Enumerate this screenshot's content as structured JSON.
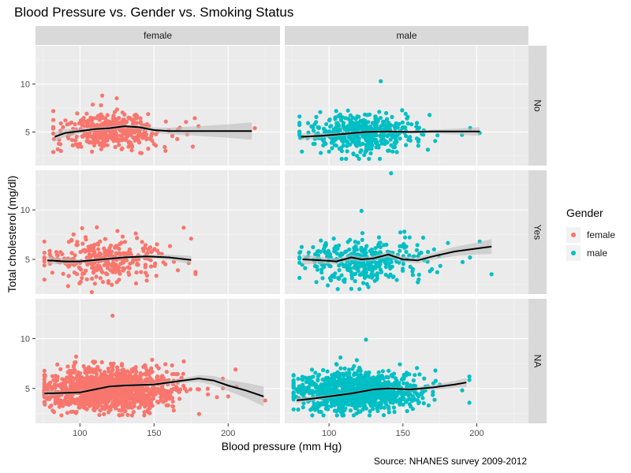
{
  "chart_data": {
    "type": "scatter",
    "title": "Blood Pressure vs. Gender vs. Smoking Status",
    "xlabel": "Blood pressure (mm Hg)",
    "ylabel": "Total cholesterol (mg/dl)",
    "caption": "Source: NHANES survey 2009-2012",
    "xlim": [
      70,
      235
    ],
    "ylim": [
      1.5,
      14
    ],
    "x_ticks": [
      100,
      150,
      200
    ],
    "y_ticks": [
      5,
      10
    ],
    "grid": true,
    "legend_position": "right",
    "legend": {
      "title": "Gender",
      "items": [
        {
          "label": "female",
          "color": "#F8766D"
        },
        {
          "label": "male",
          "color": "#00BFC4"
        }
      ]
    },
    "col_facets": [
      "female",
      "male"
    ],
    "row_facets": [
      "No",
      "Yes",
      "NA"
    ],
    "smooth_color": "#000000",
    "band_color": "#bdbdbd",
    "panels": [
      {
        "row": "No",
        "col": "female",
        "color": "#F8766D",
        "n": 420,
        "x_center": 120,
        "x_spread": 16,
        "x_min": 82,
        "x_max": 218,
        "y_center": 5.1,
        "y_spread": 0.9,
        "y_min": 2.6,
        "y_max": 8.9,
        "outliers": [
          {
            "x": 115,
            "y": 8.8
          },
          {
            "x": 218,
            "y": 5.4
          },
          {
            "x": 180,
            "y": 5.6
          },
          {
            "x": 85,
            "y": 3.2
          }
        ],
        "smooth": [
          [
            83,
            4.5
          ],
          [
            90,
            4.9
          ],
          [
            100,
            5.1
          ],
          [
            110,
            5.3
          ],
          [
            120,
            5.4
          ],
          [
            130,
            5.6
          ],
          [
            140,
            5.5
          ],
          [
            150,
            5.2
          ],
          [
            160,
            5.1
          ],
          [
            180,
            5.1
          ],
          [
            200,
            5.1
          ],
          [
            216,
            5.1
          ]
        ],
        "band": [
          0.5,
          0.4,
          0.25,
          0.2,
          0.18,
          0.18,
          0.22,
          0.28,
          0.35,
          0.5,
          0.7,
          0.9
        ]
      },
      {
        "row": "No",
        "col": "male",
        "color": "#00BFC4",
        "n": 470,
        "x_center": 122,
        "x_spread": 18,
        "x_min": 80,
        "x_max": 205,
        "y_center": 4.9,
        "y_spread": 1.0,
        "y_min": 2.2,
        "y_max": 10.3,
        "outliers": [
          {
            "x": 135,
            "y": 10.3
          },
          {
            "x": 202,
            "y": 4.9
          },
          {
            "x": 190,
            "y": 4.7
          },
          {
            "x": 82,
            "y": 4.5
          }
        ],
        "smooth": [
          [
            81,
            4.5
          ],
          [
            95,
            4.6
          ],
          [
            110,
            4.8
          ],
          [
            125,
            5.0
          ],
          [
            140,
            5.05
          ],
          [
            155,
            5.0
          ],
          [
            170,
            5.05
          ],
          [
            185,
            5.05
          ],
          [
            202,
            5.05
          ]
        ],
        "band": [
          0.35,
          0.25,
          0.15,
          0.12,
          0.12,
          0.15,
          0.2,
          0.3,
          0.45
        ]
      },
      {
        "row": "Yes",
        "col": "female",
        "color": "#F8766D",
        "n": 320,
        "x_center": 118,
        "x_spread": 18,
        "x_min": 76,
        "x_max": 178,
        "y_center": 4.9,
        "y_spread": 1.0,
        "y_min": 1.7,
        "y_max": 8.5,
        "outliers": [
          {
            "x": 76,
            "y": 6.8
          },
          {
            "x": 170,
            "y": 8.2
          },
          {
            "x": 175,
            "y": 7.1
          },
          {
            "x": 108,
            "y": 1.7
          }
        ],
        "smooth": [
          [
            78,
            4.9
          ],
          [
            90,
            4.8
          ],
          [
            100,
            4.8
          ],
          [
            115,
            5.0
          ],
          [
            130,
            5.2
          ],
          [
            145,
            5.3
          ],
          [
            160,
            5.2
          ],
          [
            175,
            4.95
          ]
        ],
        "band": [
          0.4,
          0.3,
          0.2,
          0.15,
          0.15,
          0.2,
          0.28,
          0.4
        ]
      },
      {
        "row": "Yes",
        "col": "male",
        "color": "#00BFC4",
        "n": 360,
        "x_center": 124,
        "x_spread": 18,
        "x_min": 80,
        "x_max": 212,
        "y_center": 4.9,
        "y_spread": 1.1,
        "y_min": 2.0,
        "y_max": 13.7,
        "outliers": [
          {
            "x": 142,
            "y": 13.7
          },
          {
            "x": 122,
            "y": 9.9
          },
          {
            "x": 210,
            "y": 3.5
          },
          {
            "x": 202,
            "y": 6.8
          }
        ],
        "smooth": [
          [
            82,
            5.0
          ],
          [
            95,
            4.9
          ],
          [
            105,
            4.8
          ],
          [
            115,
            5.2
          ],
          [
            122,
            5.0
          ],
          [
            130,
            5.1
          ],
          [
            140,
            5.5
          ],
          [
            150,
            5.0
          ],
          [
            160,
            4.9
          ],
          [
            170,
            5.3
          ],
          [
            185,
            5.8
          ],
          [
            200,
            6.1
          ],
          [
            210,
            6.3
          ]
        ],
        "band": [
          0.5,
          0.35,
          0.3,
          0.3,
          0.25,
          0.25,
          0.3,
          0.3,
          0.3,
          0.35,
          0.45,
          0.6,
          0.75
        ]
      },
      {
        "row": "NA",
        "col": "female",
        "color": "#F8766D",
        "n": 1400,
        "x_center": 120,
        "x_spread": 20,
        "x_min": 76,
        "x_max": 225,
        "y_center": 4.9,
        "y_spread": 1.0,
        "y_min": 2.3,
        "y_max": 12.3,
        "outliers": [
          {
            "x": 122,
            "y": 12.3
          },
          {
            "x": 225,
            "y": 3.8
          },
          {
            "x": 205,
            "y": 6.9
          },
          {
            "x": 200,
            "y": 4.2
          }
        ],
        "smooth": [
          [
            76,
            4.5
          ],
          [
            90,
            4.55
          ],
          [
            100,
            4.6
          ],
          [
            110,
            4.9
          ],
          [
            120,
            5.2
          ],
          [
            130,
            5.3
          ],
          [
            150,
            5.4
          ],
          [
            170,
            5.8
          ],
          [
            180,
            6.0
          ],
          [
            190,
            5.8
          ],
          [
            200,
            5.3
          ],
          [
            212,
            4.8
          ],
          [
            224,
            4.2
          ]
        ],
        "band": [
          0.25,
          0.15,
          0.12,
          0.1,
          0.1,
          0.12,
          0.15,
          0.25,
          0.35,
          0.45,
          0.55,
          0.75,
          1.0
        ]
      },
      {
        "row": "NA",
        "col": "male",
        "color": "#00BFC4",
        "n": 1200,
        "x_center": 118,
        "x_spread": 18,
        "x_min": 76,
        "x_max": 195,
        "y_center": 4.7,
        "y_spread": 0.95,
        "y_min": 2.3,
        "y_max": 9.9,
        "outliers": [
          {
            "x": 125,
            "y": 9.9
          },
          {
            "x": 172,
            "y": 6.8
          },
          {
            "x": 195,
            "y": 6.2
          },
          {
            "x": 78,
            "y": 4.9
          }
        ],
        "smooth": [
          [
            78,
            3.8
          ],
          [
            90,
            4.0
          ],
          [
            100,
            4.2
          ],
          [
            115,
            4.5
          ],
          [
            130,
            4.9
          ],
          [
            140,
            5.0
          ],
          [
            155,
            4.9
          ],
          [
            170,
            5.1
          ],
          [
            185,
            5.4
          ],
          [
            193,
            5.6
          ]
        ],
        "band": [
          0.3,
          0.22,
          0.15,
          0.1,
          0.1,
          0.12,
          0.15,
          0.25,
          0.35,
          0.45
        ]
      }
    ]
  }
}
